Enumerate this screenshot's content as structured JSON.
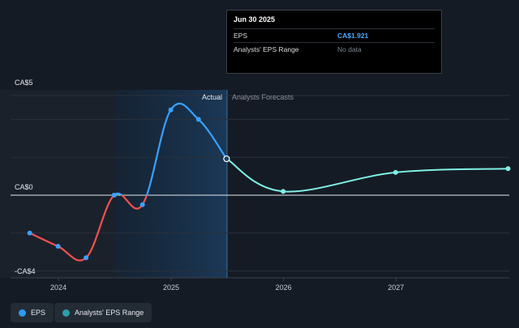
{
  "tooltip": {
    "date": "Jun 30 2025",
    "rows": [
      {
        "label": "EPS",
        "value": "CA$1.921"
      },
      {
        "label": "Analysts' EPS Range",
        "value": "No data"
      }
    ]
  },
  "legend": [
    {
      "label": "EPS",
      "color": "#2e9bf0"
    },
    {
      "label": "Analysts' EPS Range",
      "color": "#2a9fae"
    }
  ],
  "colors": {
    "actual_up": "#3aa0ff",
    "actual_down": "#f0524f",
    "forecast": "#7ff0e6",
    "highlight": "#1b3650"
  },
  "chart_data": {
    "type": "line",
    "ylabels": [
      "CA$5",
      "CA$0",
      "-CA$4"
    ],
    "section_labels": {
      "actual": "Actual",
      "forecast": "Analysts Forecasts"
    },
    "x_ticks": [
      "2024",
      "2025",
      "2026",
      "2027"
    ],
    "ylim": [
      -4,
      5
    ],
    "actual": [
      {
        "x": "2023-09-30",
        "y": -2.0
      },
      {
        "x": "2023-12-31",
        "y": -2.7
      },
      {
        "x": "2024-03-31",
        "y": -3.3
      },
      {
        "x": "2024-06-30",
        "y": 0.0
      },
      {
        "x": "2024-09-30",
        "y": -0.5
      },
      {
        "x": "2024-12-31",
        "y": 4.5
      },
      {
        "x": "2025-03-31",
        "y": 4.0
      },
      {
        "x": "2025-06-30",
        "y": 1.921
      }
    ],
    "forecast": [
      {
        "x": "2025-06-30",
        "y": 1.921
      },
      {
        "x": "2025-12-31",
        "y": 0.2
      },
      {
        "x": "2026-12-31",
        "y": 1.2
      },
      {
        "x": "2027-12-31",
        "y": 1.4
      }
    ]
  }
}
